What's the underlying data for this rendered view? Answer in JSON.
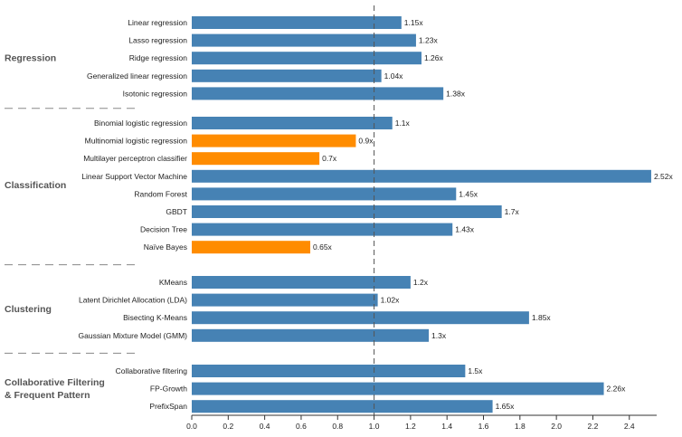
{
  "chart_data": {
    "type": "bar",
    "orientation": "horizontal",
    "xlim": [
      0,
      2.55
    ],
    "x_ticks": [
      "0.0",
      "0.2",
      "0.4",
      "0.6",
      "0.8",
      "1.0",
      "1.2",
      "1.4",
      "1.6",
      "1.8",
      "2.0",
      "2.2",
      "2.4"
    ],
    "reference_line": 1.0,
    "colors": {
      "above": "#4682b4",
      "below": "#ff8c00"
    },
    "groups": [
      {
        "name": "Regression",
        "rows": [
          {
            "label": "Linear regression",
            "value": 1.15,
            "text": "1.15x"
          },
          {
            "label": "Lasso regression",
            "value": 1.23,
            "text": "1.23x"
          },
          {
            "label": "Ridge regression",
            "value": 1.26,
            "text": "1.26x"
          },
          {
            "label": "Generalized linear regression",
            "value": 1.04,
            "text": "1.04x"
          },
          {
            "label": "Isotonic regression",
            "value": 1.38,
            "text": "1.38x"
          }
        ]
      },
      {
        "name": "Classification",
        "rows": [
          {
            "label": "Binomial logistic regression",
            "value": 1.1,
            "text": "1.1x"
          },
          {
            "label": "Multinomial logistic regression",
            "value": 0.9,
            "text": "0.9x"
          },
          {
            "label": "Multilayer perceptron classifier",
            "value": 0.7,
            "text": "0.7x"
          },
          {
            "label": "Linear Support Vector Machine",
            "value": 2.52,
            "text": "2.52x"
          },
          {
            "label": "Random Forest",
            "value": 1.45,
            "text": "1.45x"
          },
          {
            "label": "GBDT",
            "value": 1.7,
            "text": "1.7x"
          },
          {
            "label": "Decision Tree",
            "value": 1.43,
            "text": "1.43x"
          },
          {
            "label": "Naïve Bayes",
            "value": 0.65,
            "text": "0.65x"
          }
        ]
      },
      {
        "name": "Clustering",
        "rows": [
          {
            "label": "KMeans",
            "value": 1.2,
            "text": "1.2x"
          },
          {
            "label": "Latent Dirichlet Allocation (LDA)",
            "value": 1.02,
            "text": "1.02x"
          },
          {
            "label": "Bisecting K-Means",
            "value": 1.85,
            "text": "1.85x"
          },
          {
            "label": "Gaussian Mixture Model (GMM)",
            "value": 1.3,
            "text": "1.3x"
          }
        ]
      },
      {
        "name": "Collaborative Filtering\n& Frequent Pattern",
        "rows": [
          {
            "label": "Collaborative filtering",
            "value": 1.5,
            "text": "1.5x"
          },
          {
            "label": "FP-Growth",
            "value": 2.26,
            "text": "2.26x"
          },
          {
            "label": "PrefixSpan",
            "value": 1.65,
            "text": "1.65x"
          }
        ]
      }
    ]
  }
}
